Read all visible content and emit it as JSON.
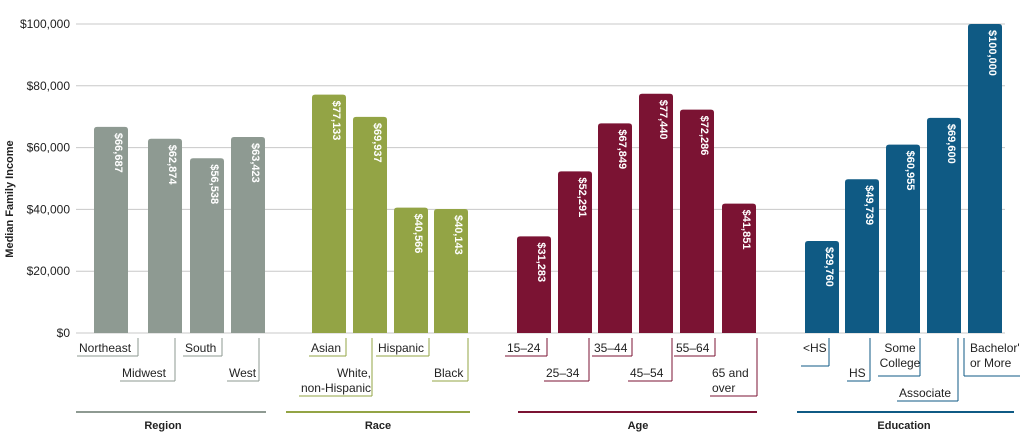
{
  "chart_data": {
    "type": "bar",
    "title": "",
    "ylabel": "Median Family Income",
    "ylim": [
      0,
      100000
    ],
    "yticks": [
      0,
      20000,
      40000,
      60000,
      80000,
      100000
    ],
    "ytick_labels": [
      "$0",
      "$20,000",
      "$40,000",
      "$60,000",
      "$80,000",
      "$100,000"
    ],
    "grid": true,
    "groups": [
      {
        "name": "Region",
        "color": "#8E9A92",
        "bars": [
          {
            "category": "Northeast",
            "value": 66687,
            "value_label": "$66,687"
          },
          {
            "category": "Midwest",
            "value": 62874,
            "value_label": "$62,874"
          },
          {
            "category": "South",
            "value": 56538,
            "value_label": "$56,538"
          },
          {
            "category": "West",
            "value": 63423,
            "value_label": "$63,423"
          }
        ]
      },
      {
        "name": "Race",
        "color": "#93A445",
        "bars": [
          {
            "category": "Asian",
            "value": 77133,
            "value_label": "$77,133"
          },
          {
            "category": "White, non-Hispanic",
            "value": 69937,
            "value_label": "$69,937"
          },
          {
            "category": "Hispanic",
            "value": 40566,
            "value_label": "$40,566"
          },
          {
            "category": "Black",
            "value": 40143,
            "value_label": "$40,143"
          }
        ]
      },
      {
        "name": "Age",
        "color": "#7B1333",
        "bars": [
          {
            "category": "15–24",
            "value": 31283,
            "value_label": "$31,283"
          },
          {
            "category": "25–34",
            "value": 52291,
            "value_label": "$52,291"
          },
          {
            "category": "35–44",
            "value": 67849,
            "value_label": "$67,849"
          },
          {
            "category": "45–54",
            "value": 77440,
            "value_label": "$77,440"
          },
          {
            "category": "55–64",
            "value": 72286,
            "value_label": "$72,286"
          },
          {
            "category": "65 and over",
            "value": 41851,
            "value_label": "$41,851"
          }
        ]
      },
      {
        "name": "Education",
        "color": "#0F5A84",
        "bars": [
          {
            "category": "<HS",
            "value": 29760,
            "value_label": "$29,760"
          },
          {
            "category": "HS",
            "value": 49739,
            "value_label": "$49,739"
          },
          {
            "category": "Some College",
            "value": 60955,
            "value_label": "$60,955"
          },
          {
            "category": "Associate",
            "value": 69600,
            "value_label": "$69,600"
          },
          {
            "category": "Bachelor's or More",
            "value": 100000,
            "value_label": "$100,000"
          }
        ]
      }
    ]
  }
}
